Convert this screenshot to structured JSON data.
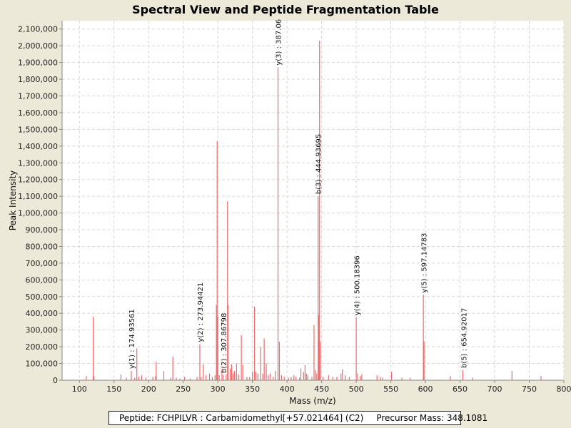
{
  "chart_data": {
    "type": "bar",
    "title": "Spectral View and Peptide Fragmentation Table",
    "xlabel": "Mass (m/z)",
    "ylabel": "Peak Intensity",
    "xlim": [
      75,
      800
    ],
    "ylim": [
      0,
      2150000
    ],
    "xticks": [
      100,
      150,
      200,
      250,
      300,
      350,
      400,
      450,
      500,
      550,
      600,
      650,
      700,
      750,
      800
    ],
    "yticks": [
      0,
      100000,
      200000,
      300000,
      400000,
      500000,
      600000,
      700000,
      800000,
      900000,
      1000000,
      1100000,
      1200000,
      1300000,
      1400000,
      1500000,
      1600000,
      1700000,
      1800000,
      1900000,
      2000000,
      2100000
    ],
    "ytick_labels": [
      "0",
      "100,000",
      "200,000",
      "300,000",
      "400,000",
      "500,000",
      "600,000",
      "700,000",
      "800,000",
      "900,000",
      "1,000,000",
      "1,100,000",
      "1,200,000",
      "1,300,000",
      "1,400,000",
      "1,500,000",
      "1,600,000",
      "1,700,000",
      "1,800,000",
      "1,900,000",
      "2,000,000",
      "2,100,000"
    ],
    "grid": true,
    "peak_color": "#f06a6a",
    "peaks": [
      [
        110,
        25000
      ],
      [
        120,
        380000
      ],
      [
        121,
        25000
      ],
      [
        160,
        35000
      ],
      [
        168,
        15000
      ],
      [
        175,
        55000
      ],
      [
        180,
        15000
      ],
      [
        183,
        190000
      ],
      [
        186,
        20000
      ],
      [
        190,
        30000
      ],
      [
        196,
        15000
      ],
      [
        206,
        20000
      ],
      [
        210,
        25000
      ],
      [
        211,
        110000
      ],
      [
        222,
        55000
      ],
      [
        232,
        15000
      ],
      [
        235,
        140000
      ],
      [
        240,
        15000
      ],
      [
        245,
        10000
      ],
      [
        252,
        20000
      ],
      [
        260,
        10000
      ],
      [
        270,
        20000
      ],
      [
        274,
        215000
      ],
      [
        276,
        20000
      ],
      [
        279,
        95000
      ],
      [
        283,
        30000
      ],
      [
        288,
        40000
      ],
      [
        292,
        20000
      ],
      [
        296,
        30000
      ],
      [
        298,
        450000
      ],
      [
        299,
        1430000
      ],
      [
        300,
        380000
      ],
      [
        302,
        30000
      ],
      [
        306,
        70000
      ],
      [
        308,
        30000
      ],
      [
        312,
        35000
      ],
      [
        314,
        1070000
      ],
      [
        315,
        450000
      ],
      [
        318,
        70000
      ],
      [
        320,
        95000
      ],
      [
        322,
        40000
      ],
      [
        324,
        55000
      ],
      [
        327,
        100000
      ],
      [
        330,
        35000
      ],
      [
        334,
        270000
      ],
      [
        336,
        90000
      ],
      [
        342,
        20000
      ],
      [
        346,
        20000
      ],
      [
        350,
        50000
      ],
      [
        353,
        440000
      ],
      [
        355,
        50000
      ],
      [
        358,
        40000
      ],
      [
        362,
        200000
      ],
      [
        365,
        40000
      ],
      [
        367,
        250000
      ],
      [
        370,
        100000
      ],
      [
        373,
        30000
      ],
      [
        376,
        40000
      ],
      [
        380,
        20000
      ],
      [
        383,
        55000
      ],
      [
        387,
        1870000
      ],
      [
        389,
        230000
      ],
      [
        392,
        30000
      ],
      [
        396,
        20000
      ],
      [
        402,
        15000
      ],
      [
        406,
        20000
      ],
      [
        410,
        30000
      ],
      [
        413,
        20000
      ],
      [
        418,
        15000
      ],
      [
        420,
        70000
      ],
      [
        424,
        50000
      ],
      [
        426,
        90000
      ],
      [
        428,
        40000
      ],
      [
        430,
        30000
      ],
      [
        436,
        20000
      ],
      [
        439,
        330000
      ],
      [
        441,
        60000
      ],
      [
        443,
        40000
      ],
      [
        445,
        1100000
      ],
      [
        446,
        390000
      ],
      [
        447,
        2030000
      ],
      [
        448,
        230000
      ],
      [
        452,
        20000
      ],
      [
        460,
        30000
      ],
      [
        466,
        20000
      ],
      [
        472,
        20000
      ],
      [
        478,
        40000
      ],
      [
        480,
        65000
      ],
      [
        484,
        30000
      ],
      [
        490,
        20000
      ],
      [
        500,
        375000
      ],
      [
        502,
        40000
      ],
      [
        506,
        25000
      ],
      [
        508,
        35000
      ],
      [
        530,
        30000
      ],
      [
        535,
        20000
      ],
      [
        538,
        15000
      ],
      [
        551,
        50000
      ],
      [
        566,
        15000
      ],
      [
        578,
        15000
      ],
      [
        597,
        510000
      ],
      [
        598,
        230000
      ],
      [
        636,
        25000
      ],
      [
        654,
        60000
      ],
      [
        668,
        15000
      ],
      [
        725,
        55000
      ],
      [
        767,
        25000
      ]
    ],
    "annotations": [
      {
        "label": "y(1) : 174.93561",
        "mass": 174.93561,
        "height": 55000
      },
      {
        "label": "y(2) : 273.94421",
        "mass": 273.94421,
        "height": 215000
      },
      {
        "label": "b(2) : 307.86798",
        "mass": 307.86798,
        "height": 30000
      },
      {
        "label": "y(3) : 387.06",
        "mass": 387.06,
        "height": 1870000
      },
      {
        "label": "b(3) : 444.93695",
        "mass": 444.93695,
        "height": 1100000
      },
      {
        "label": "y(4) : 500.18396",
        "mass": 500.18396,
        "height": 375000
      },
      {
        "label": "y(5) : 597.14783",
        "mass": 597.14783,
        "height": 510000
      },
      {
        "label": "b(5) : 654.92017",
        "mass": 654.92017,
        "height": 60000
      }
    ]
  },
  "footer": {
    "peptide": "Peptide: FCHPILVR : Carbamidomethyl[+57.021464] (C2)",
    "precursor": "Precursor Mass: 348.1081"
  }
}
